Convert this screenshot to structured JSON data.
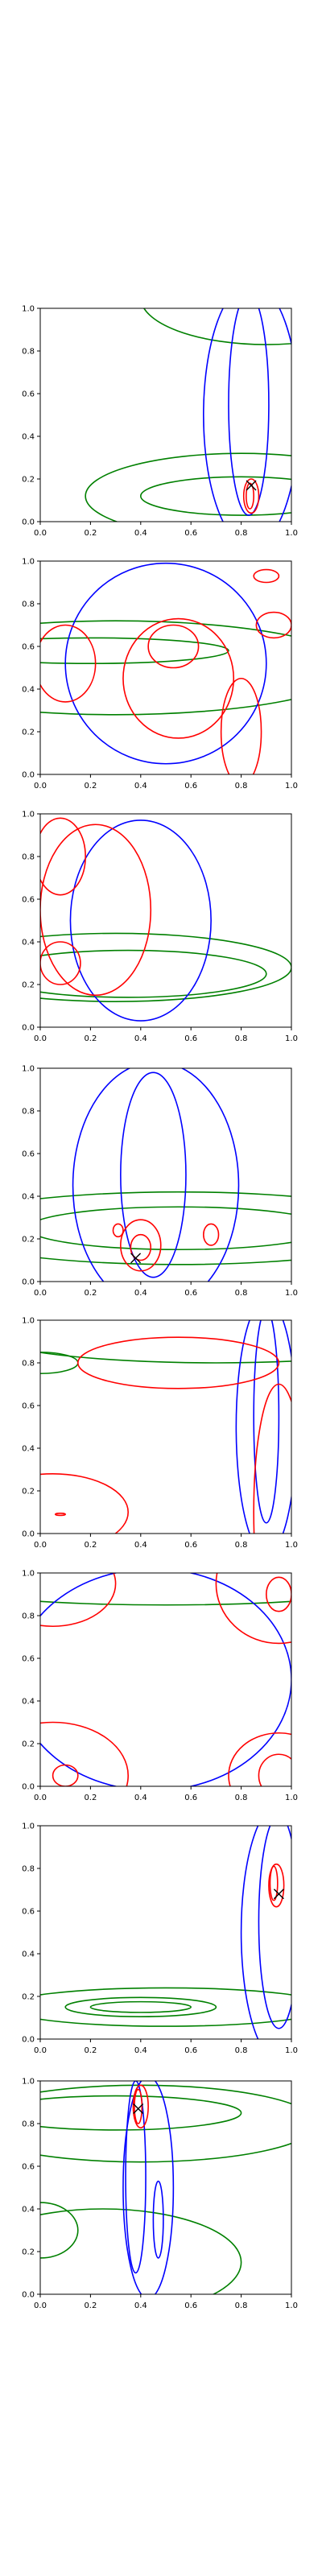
{
  "chart_data": {
    "type": "contour",
    "xlim": [
      0,
      1
    ],
    "ylim": [
      0,
      1
    ],
    "grid": false,
    "x_ticks": [
      "0.0",
      "0.2",
      "0.4",
      "0.6",
      "0.8",
      "1.0"
    ],
    "y_ticks": [
      "0.0",
      "0.2",
      "0.4",
      "0.6",
      "0.8",
      "1.0"
    ],
    "colors": {
      "blue": "#0000ff",
      "red": "#ff0000",
      "green": "#008000",
      "marker": "#000000"
    },
    "panels": [
      {
        "green": [
          {
            "cx": 0.8,
            "cy": 0.12,
            "rx": 0.4,
            "ry": 0.09
          },
          {
            "cx": 0.8,
            "cy": 0.12,
            "rx": 0.62,
            "ry": 0.2
          },
          {
            "cx": 0.9,
            "cy": 1.05,
            "rx": 0.5,
            "ry": 0.22
          }
        ],
        "blue": [
          {
            "cx": 0.83,
            "cy": 0.55,
            "rx": 0.08,
            "ry": 0.52
          },
          {
            "cx": 0.84,
            "cy": 0.5,
            "rx": 0.19,
            "ry": 0.62
          }
        ],
        "red": [
          {
            "cx": 0.835,
            "cy": 0.12,
            "rx": 0.015,
            "ry": 0.06
          },
          {
            "cx": 0.84,
            "cy": 0.12,
            "rx": 0.03,
            "ry": 0.08
          }
        ],
        "marker": {
          "x": 0.84,
          "y": 0.17
        }
      },
      {
        "green": [
          {
            "cx": 0.2,
            "cy": 0.58,
            "rx": 0.55,
            "ry": 0.06
          },
          {
            "cx": 0.3,
            "cy": 0.5,
            "rx": 0.95,
            "ry": 0.22
          }
        ],
        "blue": [
          {
            "cx": 0.5,
            "cy": 0.52,
            "rx": 0.4,
            "ry": 0.47
          }
        ],
        "red": [
          {
            "cx": 0.55,
            "cy": 0.45,
            "rx": 0.22,
            "ry": 0.28
          },
          {
            "cx": 0.53,
            "cy": 0.6,
            "rx": 0.1,
            "ry": 0.1
          },
          {
            "cx": 0.1,
            "cy": 0.52,
            "rx": 0.12,
            "ry": 0.18
          },
          {
            "cx": 0.8,
            "cy": 0.2,
            "rx": 0.08,
            "ry": 0.25
          },
          {
            "cx": 0.9,
            "cy": 0.93,
            "rx": 0.05,
            "ry": 0.03
          },
          {
            "cx": 0.93,
            "cy": 0.7,
            "rx": 0.07,
            "ry": 0.06
          }
        ],
        "marker": null
      },
      {
        "green": [
          {
            "cx": 0.35,
            "cy": 0.25,
            "rx": 0.55,
            "ry": 0.11
          },
          {
            "cx": 0.3,
            "cy": 0.28,
            "rx": 0.7,
            "ry": 0.16
          }
        ],
        "blue": [
          {
            "cx": 0.4,
            "cy": 0.5,
            "rx": 0.28,
            "ry": 0.47
          }
        ],
        "red": [
          {
            "cx": 0.22,
            "cy": 0.55,
            "rx": 0.22,
            "ry": 0.4
          },
          {
            "cx": 0.08,
            "cy": 0.8,
            "rx": 0.1,
            "ry": 0.18
          },
          {
            "cx": 0.08,
            "cy": 0.3,
            "rx": 0.08,
            "ry": 0.1
          }
        ],
        "marker": null
      },
      {
        "green": [
          {
            "cx": 0.55,
            "cy": 0.25,
            "rx": 0.6,
            "ry": 0.1
          },
          {
            "cx": 0.55,
            "cy": 0.25,
            "rx": 0.95,
            "ry": 0.17
          }
        ],
        "blue": [
          {
            "cx": 0.45,
            "cy": 0.5,
            "rx": 0.13,
            "ry": 0.48
          },
          {
            "cx": 0.46,
            "cy": 0.45,
            "rx": 0.33,
            "ry": 0.58
          }
        ],
        "red": [
          {
            "cx": 0.4,
            "cy": 0.16,
            "rx": 0.04,
            "ry": 0.06
          },
          {
            "cx": 0.4,
            "cy": 0.17,
            "rx": 0.08,
            "ry": 0.12
          },
          {
            "cx": 0.68,
            "cy": 0.22,
            "rx": 0.03,
            "ry": 0.05
          },
          {
            "cx": 0.31,
            "cy": 0.24,
            "rx": 0.02,
            "ry": 0.03
          }
        ],
        "marker": {
          "x": 0.38,
          "y": 0.11
        }
      },
      {
        "green": [
          {
            "cx": 0.7,
            "cy": 0.95,
            "rx": 0.95,
            "ry": 0.15
          },
          {
            "cx": 0.0,
            "cy": 0.8,
            "rx": 0.15,
            "ry": 0.05
          }
        ],
        "blue": [
          {
            "cx": 0.9,
            "cy": 0.55,
            "rx": 0.05,
            "ry": 0.5
          },
          {
            "cx": 0.9,
            "cy": 0.5,
            "rx": 0.12,
            "ry": 0.6
          }
        ],
        "red": [
          {
            "cx": 0.55,
            "cy": 0.8,
            "rx": 0.4,
            "ry": 0.12
          },
          {
            "cx": 0.05,
            "cy": 0.1,
            "rx": 0.3,
            "ry": 0.18
          },
          {
            "cx": 0.95,
            "cy": 0.1,
            "rx": 0.1,
            "ry": 0.6
          },
          {
            "cx": 0.08,
            "cy": 0.09,
            "rx": 0.02,
            "ry": 0.005
          }
        ],
        "marker": null
      },
      {
        "green": [
          {
            "cx": 0.5,
            "cy": 0.95,
            "rx": 0.9,
            "ry": 0.1
          }
        ],
        "blue": [
          {
            "cx": 0.45,
            "cy": 0.5,
            "rx": 0.55,
            "ry": 0.52
          }
        ],
        "red": [
          {
            "cx": 0.05,
            "cy": 0.95,
            "rx": 0.25,
            "ry": 0.2
          },
          {
            "cx": 0.95,
            "cy": 0.95,
            "rx": 0.25,
            "ry": 0.28
          },
          {
            "cx": 0.95,
            "cy": 0.9,
            "rx": 0.05,
            "ry": 0.08
          },
          {
            "cx": 0.05,
            "cy": 0.05,
            "rx": 0.3,
            "ry": 0.25
          },
          {
            "cx": 0.1,
            "cy": 0.05,
            "rx": 0.05,
            "ry": 0.05
          },
          {
            "cx": 0.95,
            "cy": 0.05,
            "rx": 0.2,
            "ry": 0.2
          },
          {
            "cx": 0.95,
            "cy": 0.05,
            "rx": 0.08,
            "ry": 0.1
          }
        ],
        "marker": null
      },
      {
        "green": [
          {
            "cx": 0.4,
            "cy": 0.15,
            "rx": 0.2,
            "ry": 0.025
          },
          {
            "cx": 0.4,
            "cy": 0.15,
            "rx": 0.3,
            "ry": 0.045
          },
          {
            "cx": 0.5,
            "cy": 0.15,
            "rx": 0.65,
            "ry": 0.09
          }
        ],
        "blue": [
          {
            "cx": 0.95,
            "cy": 0.55,
            "rx": 0.08,
            "ry": 0.5
          },
          {
            "cx": 0.95,
            "cy": 0.5,
            "rx": 0.15,
            "ry": 0.6
          }
        ],
        "red": [
          {
            "cx": 0.93,
            "cy": 0.73,
            "rx": 0.015,
            "ry": 0.08
          },
          {
            "cx": 0.94,
            "cy": 0.72,
            "rx": 0.03,
            "ry": 0.1
          }
        ],
        "marker": {
          "x": 0.95,
          "y": 0.68
        }
      },
      {
        "green": [
          {
            "cx": 0.3,
            "cy": 0.85,
            "rx": 0.5,
            "ry": 0.08
          },
          {
            "cx": 0.4,
            "cy": 0.8,
            "rx": 0.7,
            "ry": 0.18
          },
          {
            "cx": 0.0,
            "cy": 0.3,
            "rx": 0.15,
            "ry": 0.13
          },
          {
            "cx": 0.25,
            "cy": 0.15,
            "rx": 0.55,
            "ry": 0.25
          }
        ],
        "blue": [
          {
            "cx": 0.38,
            "cy": 0.55,
            "rx": 0.04,
            "ry": 0.45
          },
          {
            "cx": 0.43,
            "cy": 0.5,
            "rx": 0.1,
            "ry": 0.52
          },
          {
            "cx": 0.47,
            "cy": 0.35,
            "rx": 0.02,
            "ry": 0.18
          }
        ],
        "red": [
          {
            "cx": 0.39,
            "cy": 0.88,
            "rx": 0.015,
            "ry": 0.08
          },
          {
            "cx": 0.4,
            "cy": 0.88,
            "rx": 0.03,
            "ry": 0.1
          }
        ],
        "marker": {
          "x": 0.39,
          "y": 0.87
        }
      }
    ]
  }
}
